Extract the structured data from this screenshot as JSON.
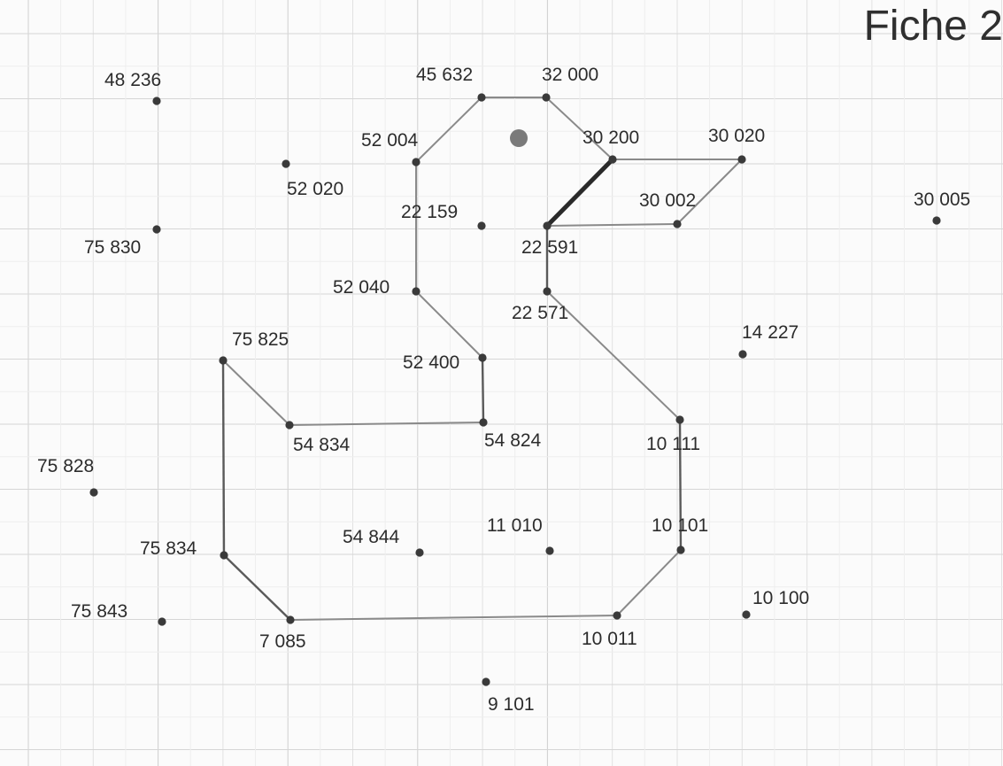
{
  "title": "Fiche 2",
  "points": [
    {
      "id": "48236",
      "label": "48 236"
    },
    {
      "id": "45632",
      "label": "45 632"
    },
    {
      "id": "32000",
      "label": "32 000"
    },
    {
      "id": "52004",
      "label": "52 004"
    },
    {
      "id": "30200",
      "label": "30 200"
    },
    {
      "id": "30020",
      "label": "30 020"
    },
    {
      "id": "52020",
      "label": "52 020"
    },
    {
      "id": "30002",
      "label": "30 002"
    },
    {
      "id": "30005",
      "label": "30 005"
    },
    {
      "id": "22159",
      "label": "22 159"
    },
    {
      "id": "22591",
      "label": "22 591"
    },
    {
      "id": "75830",
      "label": "75 830"
    },
    {
      "id": "52040",
      "label": "52 040"
    },
    {
      "id": "22571",
      "label": "22 571"
    },
    {
      "id": "75825",
      "label": "75 825"
    },
    {
      "id": "14227",
      "label": "14 227"
    },
    {
      "id": "52400",
      "label": "52 400"
    },
    {
      "id": "54834",
      "label": "54 834"
    },
    {
      "id": "54824",
      "label": "54 824"
    },
    {
      "id": "10111",
      "label": "10 111"
    },
    {
      "id": "75828",
      "label": "75 828"
    },
    {
      "id": "75834",
      "label": "75 834"
    },
    {
      "id": "54844",
      "label": "54 844"
    },
    {
      "id": "11010",
      "label": "11 010"
    },
    {
      "id": "10101",
      "label": "10 101"
    },
    {
      "id": "75843",
      "label": "75 843"
    },
    {
      "id": "10100",
      "label": "10 100"
    },
    {
      "id": "7085",
      "label": "7 085"
    },
    {
      "id": "10011",
      "label": "10 011"
    },
    {
      "id": "9101",
      "label": "9 101"
    }
  ],
  "segments": [
    [
      "52004",
      "45632"
    ],
    [
      "45632",
      "32000"
    ],
    [
      "32000",
      "30200"
    ],
    [
      "30200",
      "30020"
    ],
    [
      "30020",
      "30002"
    ],
    [
      "30002",
      "22591"
    ],
    [
      "30200",
      "22591"
    ],
    [
      "22591",
      "22571"
    ],
    [
      "22571",
      "10111"
    ],
    [
      "10111",
      "10101"
    ],
    [
      "10101",
      "10011"
    ],
    [
      "10011",
      "7085"
    ],
    [
      "7085",
      "75834"
    ],
    [
      "75834",
      "75825"
    ],
    [
      "75825",
      "54834"
    ],
    [
      "54834",
      "54824"
    ],
    [
      "54824",
      "52400"
    ],
    [
      "52400",
      "52040"
    ],
    [
      "52040",
      "52004"
    ]
  ],
  "highlighted_segment": [
    "30200",
    "22591"
  ]
}
